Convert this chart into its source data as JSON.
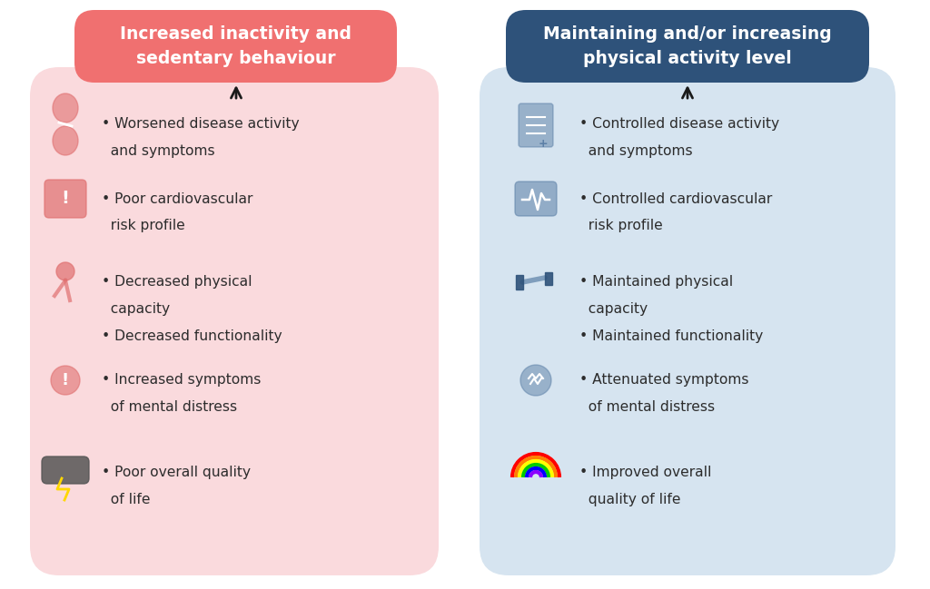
{
  "left_title": "Increased inactivity and\nsedentary behaviour",
  "right_title": "Maintaining and/or increasing\nphysical activity level",
  "left_title_bg": "#F07070",
  "right_title_bg": "#2E527A",
  "left_title_color": "#FFFFFF",
  "right_title_color": "#FFFFFF",
  "left_box_bg": "#FADADD",
  "right_box_bg": "#D6E4F0",
  "left_items": [
    [
      "Worsened disease activity",
      "and symptoms"
    ],
    [
      "Poor cardiovascular",
      "risk profile"
    ],
    [
      "Decreased physical",
      "capacity",
      "Decreased functionality"
    ],
    [
      "Increased symptoms",
      "of mental distress"
    ],
    [
      "Poor overall quality",
      "of life"
    ]
  ],
  "right_items": [
    [
      "Controlled disease activity",
      "and symptoms"
    ],
    [
      "Controlled cardiovascular",
      "risk profile"
    ],
    [
      "Maintained physical",
      "capacity",
      "Maintained functionality"
    ],
    [
      "Attenuated symptoms",
      "of mental distress"
    ],
    [
      "Improved overall",
      "quality of life"
    ]
  ],
  "text_color": "#2C2C2C",
  "bg_color": "#FFFFFF",
  "arrow_color": "#1A1A1A",
  "left_icon_color": "#E07070",
  "right_icon_color": "#5B7FA6"
}
